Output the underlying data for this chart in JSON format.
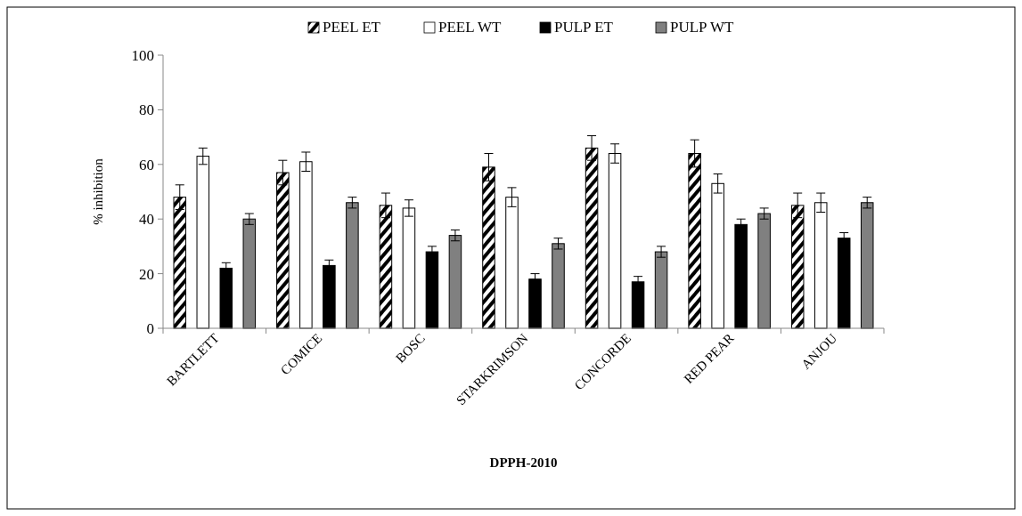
{
  "chart_data": {
    "type": "bar",
    "xlabel": "DPPH-2010",
    "ylabel": "% inhibition",
    "categories": [
      "BARTLETT",
      "COMICE",
      "BOSC",
      "STARKRIMSON",
      "CONCORDE",
      "RED PEAR",
      "ANJOU"
    ],
    "series": [
      {
        "name": "PEEL ET",
        "color": "#000000",
        "values": [
          48,
          57,
          45,
          59,
          66,
          64,
          45
        ],
        "errors": [
          4.5,
          4.5,
          4.5,
          5,
          4.5,
          5,
          4.5
        ]
      },
      {
        "name": "PEEL WT",
        "color": "#ffffff",
        "values": [
          63,
          61,
          44,
          48,
          64,
          53,
          46
        ],
        "errors": [
          3,
          3.5,
          3,
          3.5,
          3.5,
          3.5,
          3.5
        ]
      },
      {
        "name": "PULP ET",
        "color": "#000000",
        "values": [
          22,
          23,
          28,
          18,
          17,
          38,
          33
        ],
        "errors": [
          2,
          2,
          2,
          2,
          2,
          2,
          2
        ]
      },
      {
        "name": "PULP WT",
        "color": "#808080",
        "values": [
          40,
          46,
          34,
          31,
          28,
          42,
          46
        ],
        "errors": [
          2,
          2,
          2,
          2,
          2,
          2,
          2
        ]
      }
    ],
    "ylim": [
      0,
      100
    ],
    "yticks": [
      0,
      20,
      40,
      60,
      80,
      100
    ],
    "legend": "top",
    "grid": false
  }
}
